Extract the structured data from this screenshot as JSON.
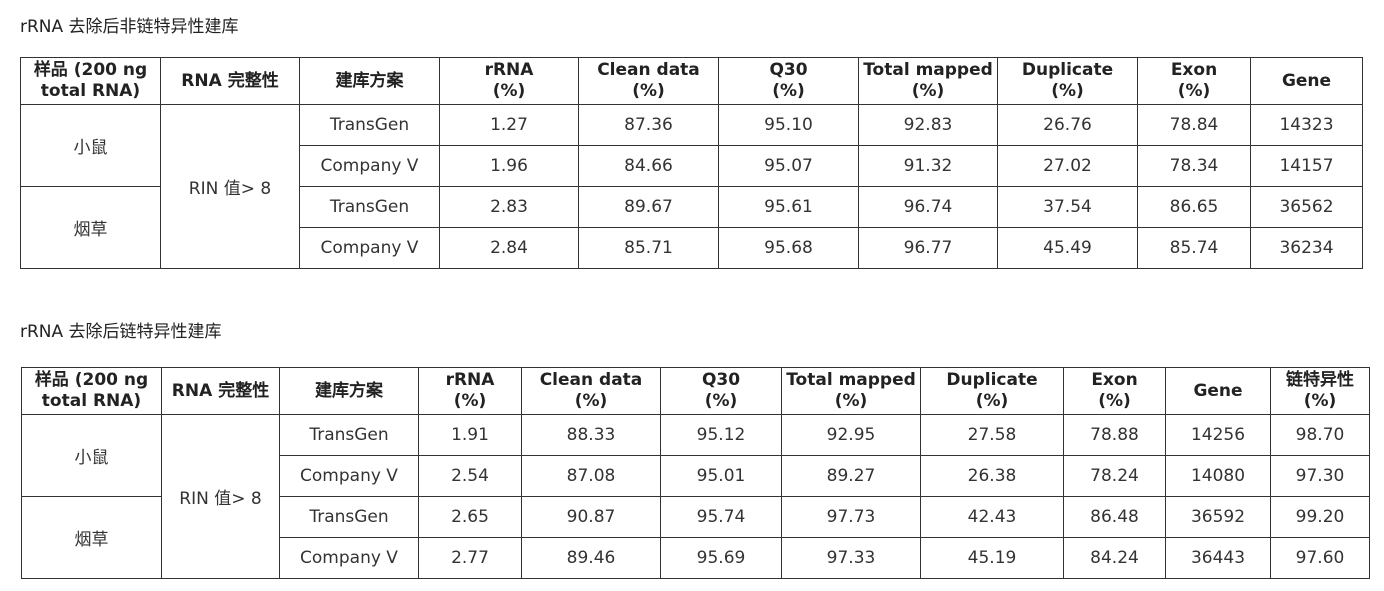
{
  "tables": [
    {
      "title": "rRNA 去除后非链特异性建库",
      "header": [
        "样品 (200 ng\ntotal RNA)",
        "RNA 完整性",
        "建库方案",
        "rRNA\n(%)",
        "Clean data\n(%)",
        "Q30\n(%)",
        "Total mapped\n(%)",
        "Duplicate\n(%)",
        "Exon\n(%)",
        "Gene"
      ],
      "rin": "RIN  值> 8",
      "groups": [
        {
          "sample": "小鼠",
          "rows": [
            [
              "TransGen",
              "1.27",
              "87.36",
              "95.10",
              "92.83",
              "26.76",
              "78.84",
              "14323"
            ],
            [
              "Company V",
              "1.96",
              "84.66",
              "95.07",
              "91.32",
              "27.02",
              "78.34",
              "14157"
            ]
          ]
        },
        {
          "sample": "烟草",
          "rows": [
            [
              "TransGen",
              "2.83",
              "89.67",
              "95.61",
              "96.74",
              "37.54",
              "86.65",
              "36562"
            ],
            [
              "Company V",
              "2.84",
              "85.71",
              "95.68",
              "96.77",
              "45.49",
              "85.74",
              "36234"
            ]
          ]
        }
      ]
    },
    {
      "title": "rRNA 去除后链特异性建库",
      "header": [
        "样品 (200 ng\ntotal RNA)",
        "RNA 完整性",
        "建库方案",
        "rRNA\n(%)",
        "Clean data\n(%)",
        "Q30\n(%)",
        "Total mapped\n(%)",
        "Duplicate\n(%)",
        "Exon\n(%)",
        "Gene",
        "链特异性\n(%)"
      ],
      "rin": "RIN  值> 8",
      "groups": [
        {
          "sample": "小鼠",
          "rows": [
            [
              "TransGen",
              "1.91",
              "88.33",
              "95.12",
              "92.95",
              "27.58",
              "78.88",
              "14256",
              "98.70"
            ],
            [
              "Company V",
              "2.54",
              "87.08",
              "95.01",
              "89.27",
              "26.38",
              "78.24",
              "14080",
              "97.30"
            ]
          ]
        },
        {
          "sample": "烟草",
          "rows": [
            [
              "TransGen",
              "2.65",
              "90.87",
              "95.74",
              "97.73",
              "42.43",
              "86.48",
              "36592",
              "99.20"
            ],
            [
              "Company V",
              "2.77",
              "89.46",
              "95.69",
              "97.33",
              "45.19",
              "84.24",
              "36443",
              "97.60"
            ]
          ]
        }
      ]
    }
  ]
}
